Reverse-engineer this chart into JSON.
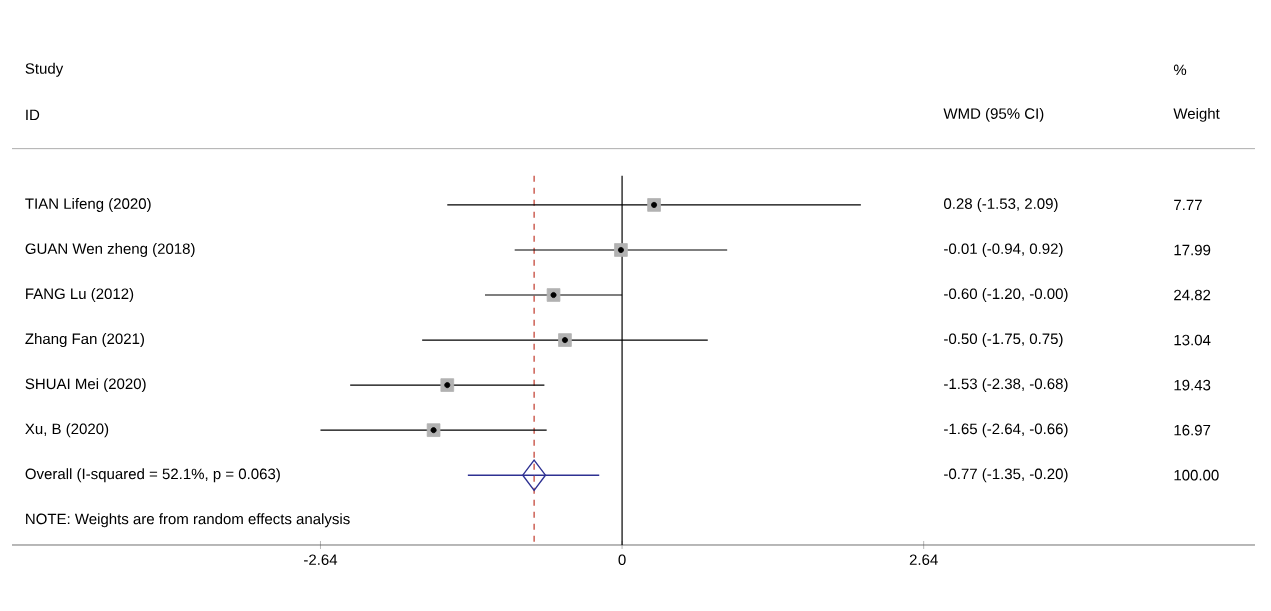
{
  "chart_data": {
    "type": "scatter",
    "orientation": "horizontal",
    "categories": [
      "TIAN Lifeng (2020)",
      "GUAN Wen zheng (2018)",
      "FANG Lu (2012)",
      "Zhang Fan (2021)",
      "SHUAI Mei (2020)",
      "Xu, B (2020)",
      "Overall  (I-squared = 52.1%, p = 0.063)"
    ],
    "xlim": [
      -5.34,
      5.54
    ],
    "xticks": [
      -2.64,
      0,
      2.64
    ],
    "series": [
      {
        "color": "#000000",
        "marker": "square",
        "values": [
          0.28,
          -0.01,
          -0.6,
          -0.5,
          -1.53,
          -1.65,
          null
        ],
        "errors": [
          [
            -1.53,
            2.09
          ],
          [
            -0.94,
            0.92
          ],
          [
            -1.2,
            -0.0
          ],
          [
            -1.75,
            0.75
          ],
          [
            -2.38,
            -0.68
          ],
          [
            -2.64,
            -0.66
          ],
          null
        ]
      },
      {
        "color": "#2e3192",
        "marker": "diamond",
        "values": [
          null,
          null,
          null,
          null,
          null,
          null,
          -0.77
        ],
        "errors": [
          null,
          null,
          null,
          null,
          null,
          null,
          [
            -1.35,
            -0.2
          ]
        ]
      }
    ],
    "ref_lines": [
      {
        "axis": "x",
        "value": 0,
        "color": "#000000",
        "line_style": "solid"
      },
      {
        "axis": "x",
        "value": -0.77,
        "color": "#c0392b",
        "line_style": "dashed"
      }
    ],
    "annotations": [
      "Study",
      "ID",
      "WMD (95% CI)",
      "%",
      "Weight",
      "7.77",
      "17.99",
      "24.82",
      "13.04",
      "19.43",
      "16.97",
      "100.00",
      "0.28 (-1.53, 2.09)",
      "-0.01 (-0.94, 0.92)",
      "-0.60 (-1.20, -0.00)",
      "-0.50 (-1.75, 0.75)",
      "-1.53 (-2.38, -0.68)",
      "-1.65 (-2.64, -0.66)",
      "-0.77 (-1.35, -0.20)",
      "NOTE: Weights are from random effects analysis"
    ]
  }
}
